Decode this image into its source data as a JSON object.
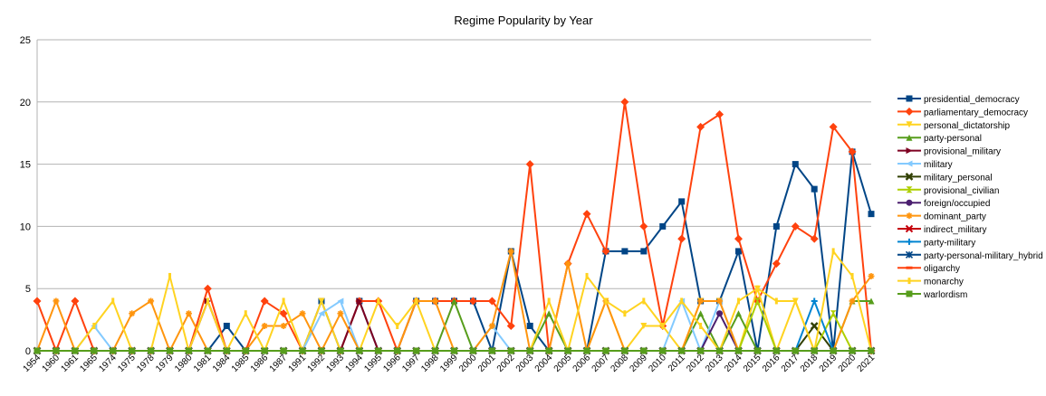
{
  "chart_data": {
    "type": "line",
    "title": "Regime Popularity by Year",
    "xlabel": "",
    "ylabel": "",
    "ylim": [
      0,
      25
    ],
    "yticks": [
      0,
      5,
      10,
      15,
      20,
      25
    ],
    "grid": "horizontal",
    "legend_position": "right",
    "categories": [
      "1954",
      "1960",
      "1961",
      "1965",
      "1974",
      "1975",
      "1978",
      "1979",
      "1980",
      "1981",
      "1984",
      "1985",
      "1986",
      "1987",
      "1991",
      "1992",
      "1993",
      "1994",
      "1995",
      "1996",
      "1997",
      "1998",
      "1999",
      "2000",
      "2001",
      "2002",
      "2003",
      "2004",
      "2005",
      "2006",
      "2007",
      "2008",
      "2009",
      "2010",
      "2011",
      "2012",
      "2013",
      "2014",
      "2015",
      "2016",
      "2017",
      "2018",
      "2019",
      "2020",
      "2021"
    ],
    "series": [
      {
        "name": "presidential_democracy",
        "color": "#004586",
        "marker": "square",
        "values": [
          0,
          0,
          0,
          0,
          0,
          0,
          0,
          0,
          0,
          0,
          2,
          0,
          0,
          0,
          0,
          4,
          0,
          4,
          0,
          0,
          4,
          4,
          4,
          4,
          0,
          8,
          2,
          0,
          0,
          0,
          8,
          8,
          8,
          10,
          12,
          4,
          4,
          8,
          0,
          10,
          15,
          13,
          0,
          16,
          11
        ]
      },
      {
        "name": "parliamentary_democracy",
        "color": "#ff420e",
        "marker": "diamond",
        "values": [
          4,
          0,
          4,
          0,
          0,
          0,
          0,
          0,
          0,
          5,
          0,
          0,
          4,
          3,
          0,
          0,
          0,
          4,
          4,
          0,
          4,
          4,
          4,
          4,
          4,
          2,
          15,
          0,
          7,
          11,
          8,
          20,
          10,
          2,
          9,
          18,
          19,
          9,
          4,
          7,
          10,
          9,
          18,
          16,
          0
        ]
      },
      {
        "name": "personal_dictatorship",
        "color": "#ffd320",
        "marker": "triangle-down",
        "values": [
          0,
          0,
          0,
          0,
          0,
          0,
          0,
          0,
          0,
          0,
          0,
          0,
          0,
          0,
          0,
          4,
          0,
          0,
          0,
          0,
          0,
          0,
          0,
          0,
          0,
          0,
          0,
          0,
          0,
          0,
          4,
          0,
          2,
          2,
          0,
          4,
          4,
          0,
          5,
          0,
          4,
          0,
          0,
          0,
          0
        ]
      },
      {
        "name": "party-personal",
        "color": "#579d1c",
        "marker": "triangle-up",
        "values": [
          0,
          0,
          0,
          0,
          0,
          0,
          0,
          0,
          0,
          0,
          0,
          0,
          0,
          0,
          0,
          0,
          0,
          0,
          0,
          0,
          0,
          0,
          4,
          0,
          0,
          0,
          0,
          3,
          0,
          0,
          0,
          0,
          0,
          0,
          0,
          3,
          0,
          3,
          0,
          0,
          0,
          0,
          0,
          4,
          4
        ]
      },
      {
        "name": "provisional_military",
        "color": "#7e0021",
        "marker": "triangle-right",
        "values": [
          0,
          0,
          0,
          0,
          0,
          0,
          0,
          0,
          0,
          4,
          0,
          0,
          0,
          0,
          0,
          0,
          0,
          4,
          0,
          0,
          0,
          0,
          0,
          0,
          0,
          0,
          0,
          0,
          0,
          0,
          0,
          0,
          0,
          0,
          0,
          0,
          0,
          0,
          0,
          0,
          0,
          0,
          0,
          0,
          0
        ]
      },
      {
        "name": "military",
        "color": "#83caff",
        "marker": "triangle-left",
        "values": [
          0,
          0,
          0,
          2,
          0,
          0,
          0,
          0,
          0,
          0,
          0,
          0,
          0,
          0,
          0,
          3,
          4,
          0,
          0,
          0,
          0,
          0,
          0,
          0,
          2,
          0,
          0,
          0,
          0,
          0,
          0,
          0,
          0,
          0,
          4,
          0,
          4,
          0,
          0,
          0,
          0,
          0,
          0,
          0,
          0
        ]
      },
      {
        "name": "military_personal",
        "color": "#314004",
        "marker": "x",
        "values": [
          0,
          0,
          0,
          0,
          0,
          0,
          0,
          0,
          0,
          0,
          0,
          0,
          0,
          0,
          0,
          0,
          0,
          0,
          0,
          0,
          0,
          0,
          0,
          0,
          0,
          0,
          0,
          0,
          0,
          0,
          0,
          0,
          0,
          0,
          0,
          0,
          0,
          0,
          0,
          0,
          0,
          2,
          0,
          0,
          0
        ]
      },
      {
        "name": "provisional_civilian",
        "color": "#aecf00",
        "marker": "hourglass",
        "values": [
          0,
          0,
          0,
          0,
          0,
          0,
          0,
          0,
          0,
          0,
          0,
          0,
          0,
          0,
          0,
          0,
          0,
          0,
          0,
          0,
          0,
          0,
          0,
          0,
          0,
          0,
          0,
          0,
          0,
          0,
          0,
          0,
          0,
          0,
          0,
          0,
          0,
          0,
          4,
          0,
          0,
          0,
          3,
          0,
          0
        ]
      },
      {
        "name": "foreign/occupied",
        "color": "#4b1f6f",
        "marker": "circle",
        "values": [
          0,
          0,
          0,
          0,
          0,
          0,
          0,
          0,
          0,
          0,
          0,
          0,
          0,
          0,
          0,
          0,
          0,
          0,
          0,
          0,
          0,
          0,
          0,
          0,
          0,
          0,
          0,
          0,
          0,
          0,
          0,
          0,
          0,
          0,
          0,
          0,
          3,
          0,
          0,
          0,
          0,
          0,
          0,
          0,
          0
        ]
      },
      {
        "name": "dominant_party",
        "color": "#ff950e",
        "marker": "star",
        "values": [
          0,
          4,
          0,
          0,
          0,
          3,
          4,
          0,
          3,
          0,
          0,
          0,
          2,
          2,
          3,
          0,
          3,
          0,
          0,
          0,
          4,
          4,
          0,
          0,
          2,
          8,
          0,
          0,
          7,
          0,
          4,
          0,
          0,
          0,
          0,
          4,
          4,
          0,
          0,
          0,
          0,
          0,
          0,
          4,
          6
        ]
      },
      {
        "name": "indirect_military",
        "color": "#c5000b",
        "marker": "cross",
        "values": [
          0,
          0,
          0,
          0,
          0,
          0,
          0,
          0,
          0,
          0,
          0,
          0,
          0,
          0,
          0,
          0,
          0,
          0,
          0,
          0,
          0,
          0,
          0,
          0,
          0,
          0,
          0,
          0,
          0,
          0,
          0,
          0,
          0,
          0,
          0,
          0,
          0,
          0,
          0,
          0,
          0,
          0,
          0,
          0,
          0
        ]
      },
      {
        "name": "party-military",
        "color": "#0084d1",
        "marker": "plus",
        "values": [
          0,
          0,
          0,
          0,
          0,
          0,
          0,
          0,
          0,
          0,
          0,
          0,
          0,
          0,
          0,
          0,
          0,
          0,
          0,
          0,
          0,
          0,
          0,
          0,
          0,
          0,
          0,
          0,
          0,
          0,
          0,
          0,
          0,
          0,
          0,
          0,
          0,
          0,
          0,
          0,
          0,
          4,
          0,
          0,
          0
        ]
      },
      {
        "name": "party-personal-military_hybrid",
        "color": "#004586",
        "marker": "asterisk",
        "values": [
          0,
          0,
          0,
          0,
          0,
          0,
          0,
          0,
          0,
          0,
          0,
          0,
          0,
          0,
          0,
          0,
          0,
          0,
          0,
          0,
          0,
          0,
          0,
          0,
          0,
          0,
          0,
          0,
          0,
          0,
          0,
          0,
          0,
          0,
          0,
          0,
          0,
          0,
          0,
          0,
          0,
          0,
          0,
          0,
          0
        ]
      },
      {
        "name": "oligarchy",
        "color": "#ff420e",
        "marker": "dash",
        "values": [
          0,
          0,
          0,
          0,
          0,
          0,
          0,
          0,
          0,
          0,
          0,
          0,
          0,
          0,
          0,
          0,
          0,
          0,
          0,
          0,
          0,
          0,
          0,
          0,
          0,
          0,
          0,
          0,
          0,
          0,
          0,
          0,
          0,
          0,
          0,
          0,
          0,
          0,
          0,
          0,
          0,
          0,
          0,
          0,
          0
        ]
      },
      {
        "name": "monarchy",
        "color": "#ffd320",
        "marker": "bar",
        "values": [
          0,
          0,
          0,
          2,
          4,
          0,
          0,
          6,
          0,
          4,
          0,
          3,
          0,
          4,
          0,
          0,
          0,
          0,
          4,
          2,
          4,
          0,
          0,
          0,
          0,
          0,
          0,
          4,
          0,
          6,
          4,
          3,
          4,
          2,
          4,
          2,
          0,
          4,
          5,
          4,
          4,
          0,
          8,
          6,
          0
        ]
      },
      {
        "name": "warlordism",
        "color": "#579d1c",
        "marker": "square",
        "values": [
          0,
          0,
          0,
          0,
          0,
          0,
          0,
          0,
          0,
          0,
          0,
          0,
          0,
          0,
          0,
          0,
          0,
          0,
          0,
          0,
          0,
          0,
          0,
          0,
          0,
          0,
          0,
          0,
          0,
          0,
          0,
          0,
          0,
          0,
          0,
          0,
          0,
          0,
          0,
          0,
          0,
          0,
          0,
          0,
          0
        ]
      }
    ]
  }
}
